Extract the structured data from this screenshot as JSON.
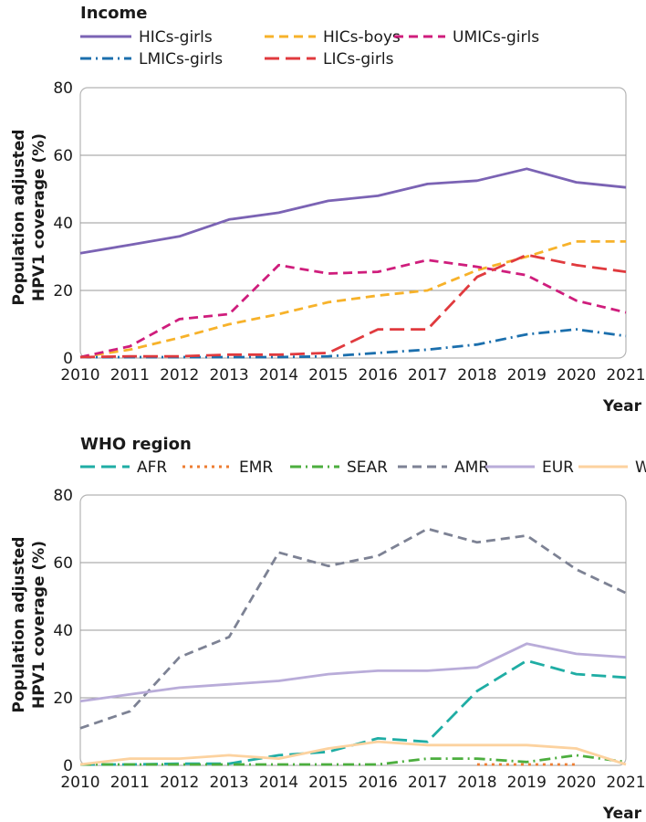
{
  "chart_data": [
    {
      "type": "line",
      "legend_title": "Income",
      "ylabel": [
        "Population adjusted",
        "HPV1 coverage (%)"
      ],
      "xlabel": "Year",
      "x": [
        2010,
        2011,
        2012,
        2013,
        2014,
        2015,
        2016,
        2017,
        2018,
        2019,
        2020,
        2021
      ],
      "ylim": [
        0,
        80
      ],
      "yticks": [
        0,
        20,
        40,
        60,
        80
      ],
      "series": [
        {
          "name": "HICs-girls",
          "color": "#7b63b4",
          "dash": "solid",
          "values": [
            31,
            33.5,
            36,
            41,
            43,
            46.5,
            48,
            51.5,
            52.5,
            56,
            52,
            50.5
          ]
        },
        {
          "name": "HICs-boys",
          "color": "#f7b22a",
          "dash": "dash",
          "values": [
            0,
            2.5,
            6,
            10,
            13,
            16.5,
            18.5,
            20,
            26,
            30,
            34.5,
            34.5
          ]
        },
        {
          "name": "UMICs-girls",
          "color": "#cf1d7c",
          "dash": "dash",
          "values": [
            0,
            3.5,
            11.5,
            13,
            27.5,
            25,
            25.5,
            29,
            27,
            24.5,
            17,
            13.5
          ]
        },
        {
          "name": "LMICs-girls",
          "color": "#1b6fad",
          "dash": "dashdot",
          "values": [
            0,
            0,
            0,
            0,
            0,
            0.5,
            1.5,
            2.5,
            4,
            7,
            8.5,
            6.5
          ]
        },
        {
          "name": "LICs-girls",
          "color": "#e03a3e",
          "dash": "longdash",
          "values": [
            0,
            0.5,
            0.5,
            1,
            1,
            1.5,
            8.5,
            8.5,
            24,
            30.5,
            27.5,
            25.5
          ]
        }
      ]
    },
    {
      "type": "line",
      "legend_title": "WHO region",
      "ylabel": [
        "Population adjusted",
        "HPV1 coverage (%)"
      ],
      "xlabel": "Year",
      "x": [
        2010,
        2011,
        2012,
        2013,
        2014,
        2015,
        2016,
        2017,
        2018,
        2019,
        2020,
        2021
      ],
      "ylim": [
        0,
        80
      ],
      "yticks": [
        0,
        20,
        40,
        60,
        80
      ],
      "series": [
        {
          "name": "AFR",
          "color": "#1fada4",
          "dash": "longdash",
          "values": [
            0,
            0,
            0.5,
            0.5,
            3,
            4,
            8,
            7,
            22,
            31,
            27,
            26
          ]
        },
        {
          "name": "EMR",
          "color": "#ee7d32",
          "dash": "dot",
          "values": [
            null,
            null,
            null,
            null,
            null,
            null,
            null,
            null,
            0,
            0,
            0,
            null
          ]
        },
        {
          "name": "SEAR",
          "color": "#4cae3e",
          "dash": "dashdot",
          "values": [
            0,
            0,
            0,
            0,
            0,
            0,
            0,
            2,
            2,
            1,
            3,
            1
          ]
        },
        {
          "name": "AMR",
          "color": "#7d8294",
          "dash": "dash",
          "values": [
            11,
            16,
            32,
            38,
            63,
            59,
            62,
            70,
            66,
            68,
            58,
            51
          ]
        },
        {
          "name": "EUR",
          "color": "#b9acd9",
          "dash": "solid",
          "values": [
            19,
            21,
            23,
            24,
            25,
            27,
            28,
            28,
            29,
            36,
            33,
            32
          ]
        },
        {
          "name": "WPR",
          "color": "#fcd29f",
          "dash": "solid",
          "values": [
            0,
            2,
            2,
            3,
            2,
            5,
            7,
            6,
            6,
            6,
            5,
            0
          ]
        }
      ]
    }
  ]
}
